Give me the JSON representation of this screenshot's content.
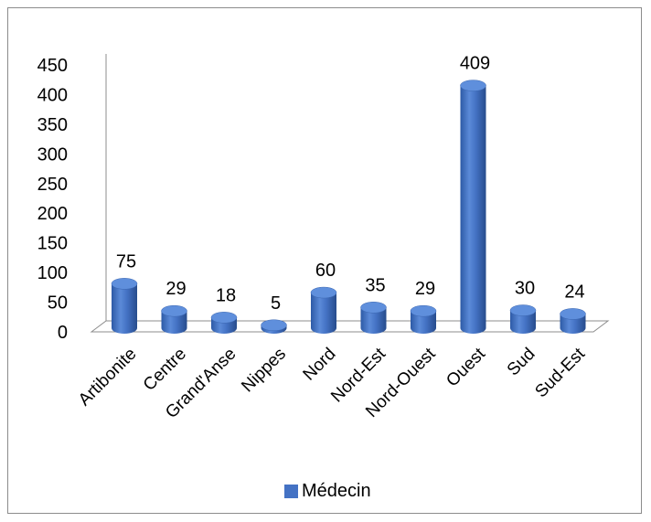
{
  "chart_data": {
    "type": "bar",
    "title": "",
    "xlabel": "",
    "ylabel": "",
    "categories": [
      "Artibonite",
      "Centre",
      "Grand'Anse",
      "Nippes",
      "Nord",
      "Nord-Est",
      "Nord-Ouest",
      "Ouest",
      "Sud",
      "Sud-Est"
    ],
    "series": [
      {
        "name": "Médecin",
        "values": [
          75,
          29,
          18,
          5,
          60,
          35,
          29,
          409,
          30,
          24
        ]
      }
    ],
    "ylim": [
      0,
      450
    ],
    "yticks": [
      "0",
      "50",
      "100",
      "150",
      "200",
      "250",
      "300",
      "350",
      "400",
      "450"
    ],
    "data_labels": [
      "75",
      "29",
      "18",
      "5",
      "60",
      "35",
      "29",
      "409",
      "30",
      "24"
    ],
    "grid": false,
    "legend_position": "bottom",
    "bar_style": "3d-cylinder",
    "bar_color": "#4472c4"
  }
}
